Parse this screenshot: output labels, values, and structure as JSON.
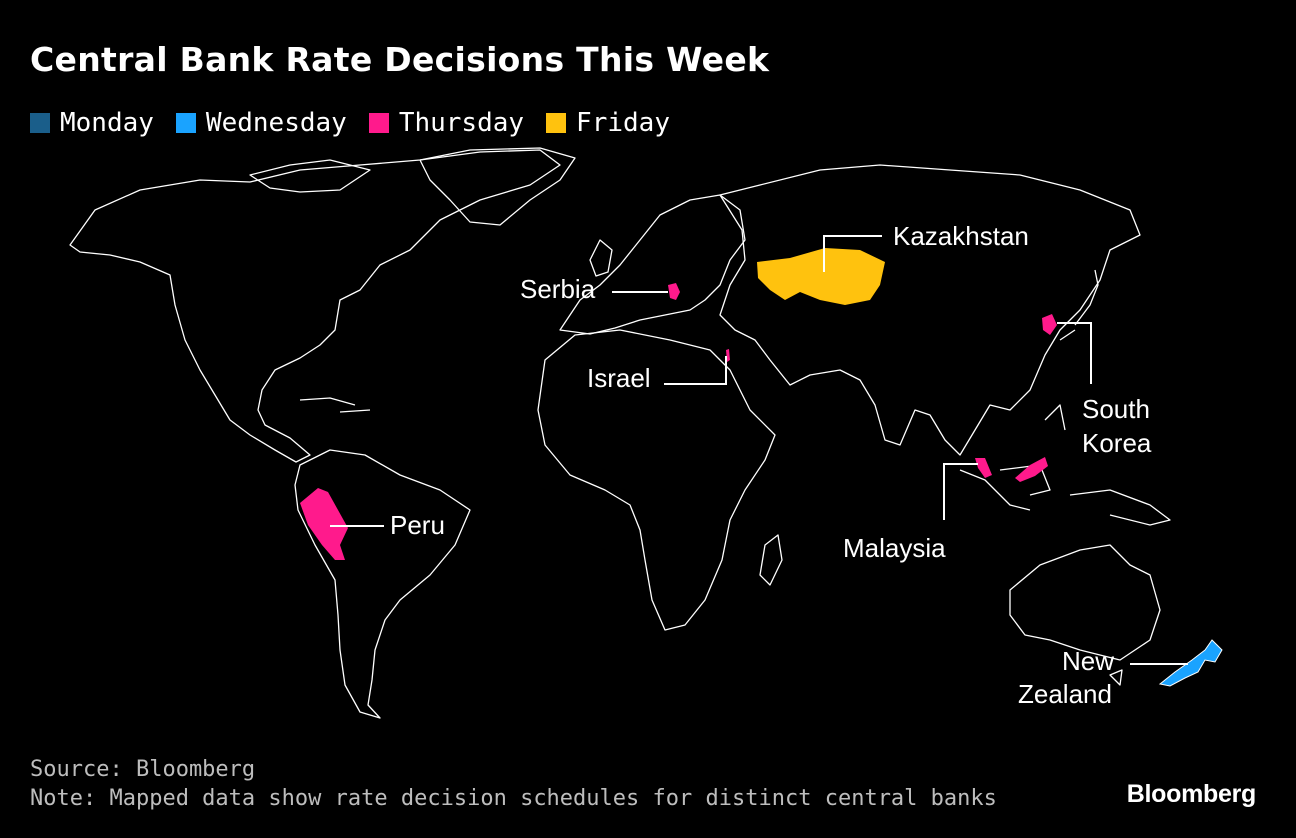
{
  "title": "Central Bank Rate Decisions This Week",
  "legend": [
    {
      "label": "Monday",
      "color": "#1a5e8a"
    },
    {
      "label": "Wednesday",
      "color": "#1aa3ff"
    },
    {
      "label": "Thursday",
      "color": "#ff1a8c"
    },
    {
      "label": "Friday",
      "color": "#ffc20e"
    }
  ],
  "countries": {
    "kazakhstan": {
      "name": "Kazakhstan",
      "day": "Friday"
    },
    "serbia": {
      "name": "Serbia",
      "day": "Thursday"
    },
    "israel": {
      "name": "Israel",
      "day": "Thursday"
    },
    "south_korea": {
      "name_line1": "South",
      "name_line2": "Korea",
      "day": "Thursday"
    },
    "peru": {
      "name": "Peru",
      "day": "Thursday"
    },
    "malaysia": {
      "name": "Malaysia",
      "day": "Thursday"
    },
    "new_zealand": {
      "name_line1": "New",
      "name_line2": "Zealand",
      "day": "Wednesday"
    }
  },
  "footer": {
    "source": "Source: Bloomberg",
    "note": "Note: Mapped data show rate decision schedules for distinct central banks"
  },
  "brand": "Bloomberg"
}
